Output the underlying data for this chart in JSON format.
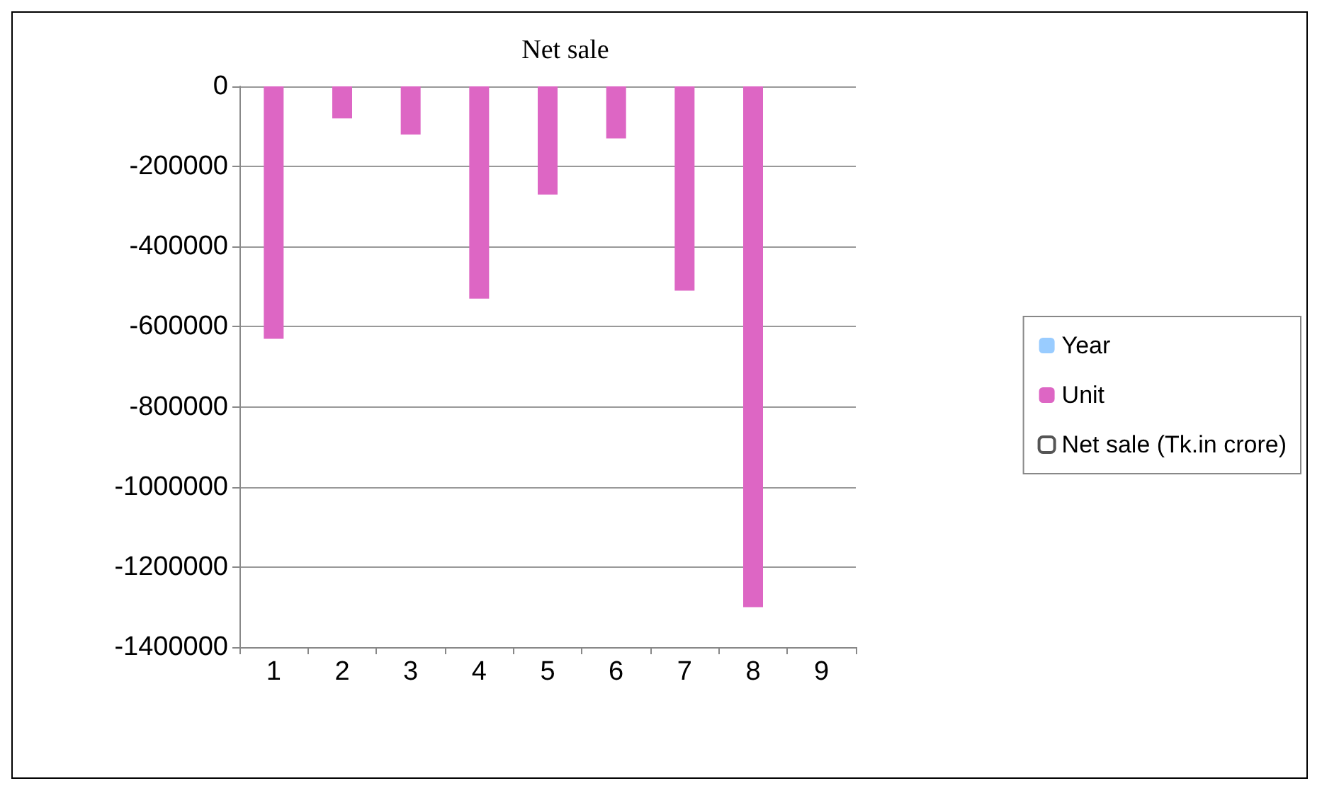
{
  "chart_data": {
    "type": "bar",
    "title": "Net sale",
    "categories": [
      "1",
      "2",
      "3",
      "4",
      "5",
      "6",
      "7",
      "8",
      "9"
    ],
    "series": [
      {
        "name": "Year",
        "color": "#99ccff",
        "values": [
          0,
          0,
          0,
          0,
          0,
          0,
          0,
          0,
          null
        ]
      },
      {
        "name": "Unit",
        "color": "#dd66c4",
        "values": [
          -630000,
          -80000,
          -120000,
          -530000,
          -270000,
          -130000,
          -510000,
          -1300000,
          null
        ]
      },
      {
        "name": "Net sale (Tk.in crore)",
        "color": "#ffffff",
        "values": [
          0,
          0,
          0,
          0,
          0,
          0,
          0,
          0,
          null
        ]
      }
    ],
    "ylim": [
      -1400000,
      0
    ],
    "yticks": [
      -1400000,
      -1200000,
      -1000000,
      -800000,
      -600000,
      -400000,
      -200000,
      0
    ],
    "grid": "y",
    "legend": "right"
  }
}
